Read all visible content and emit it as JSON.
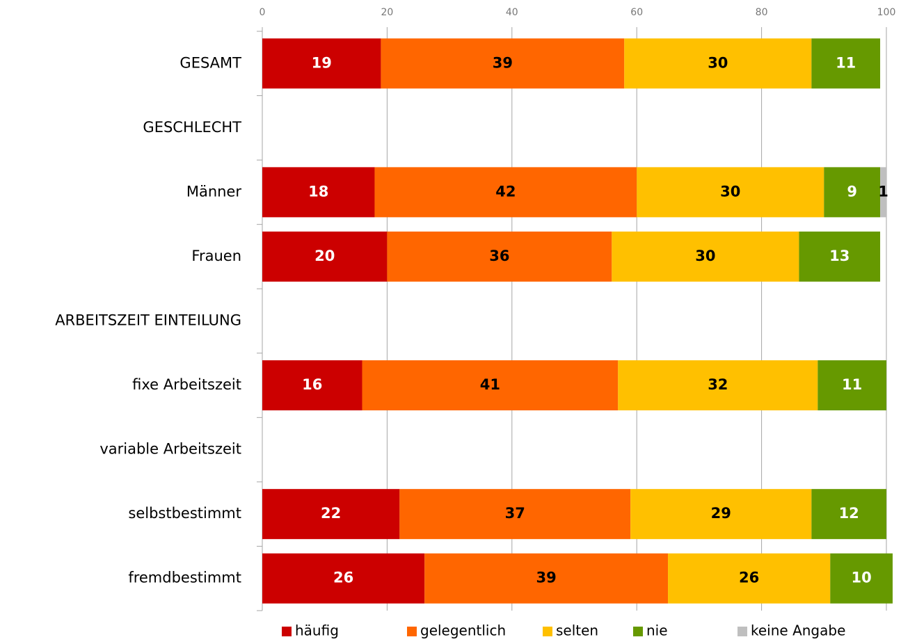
{
  "chart_data": {
    "type": "stacked-barh",
    "categories": [
      "GESAMT",
      "GESCHLECHT",
      "Männer",
      "Frauen",
      "ARBEITSZEIT EINTEILUNG",
      "fixe Arbeitszeit",
      "variable Arbeitszeit",
      "selbstbestimmt",
      "fremdbestimmt"
    ],
    "series": [
      {
        "name": "häufig",
        "color": "#cc0000",
        "label_color": "#ffffff",
        "values": [
          19,
          null,
          18,
          20,
          null,
          16,
          null,
          22,
          26
        ]
      },
      {
        "name": "gelegentlich",
        "color": "#ff6600",
        "label_color": "#000000",
        "values": [
          39,
          null,
          42,
          36,
          null,
          41,
          null,
          37,
          39
        ]
      },
      {
        "name": "selten",
        "color": "#ffc000",
        "label_color": "#000000",
        "values": [
          30,
          null,
          30,
          30,
          null,
          32,
          null,
          29,
          26
        ]
      },
      {
        "name": "nie",
        "color": "#669900",
        "label_color": "#ffffff",
        "values": [
          11,
          null,
          9,
          13,
          null,
          11,
          null,
          12,
          10
        ]
      },
      {
        "name": "keine Angabe",
        "color": "#bfbfbf",
        "label_color": "#000000",
        "values": [
          null,
          null,
          1,
          null,
          null,
          null,
          null,
          null,
          null
        ]
      }
    ],
    "xlim": [
      0,
      100
    ],
    "xticks": [
      0,
      20,
      40,
      60,
      80,
      100
    ],
    "grid": true,
    "legend": "bottom"
  }
}
